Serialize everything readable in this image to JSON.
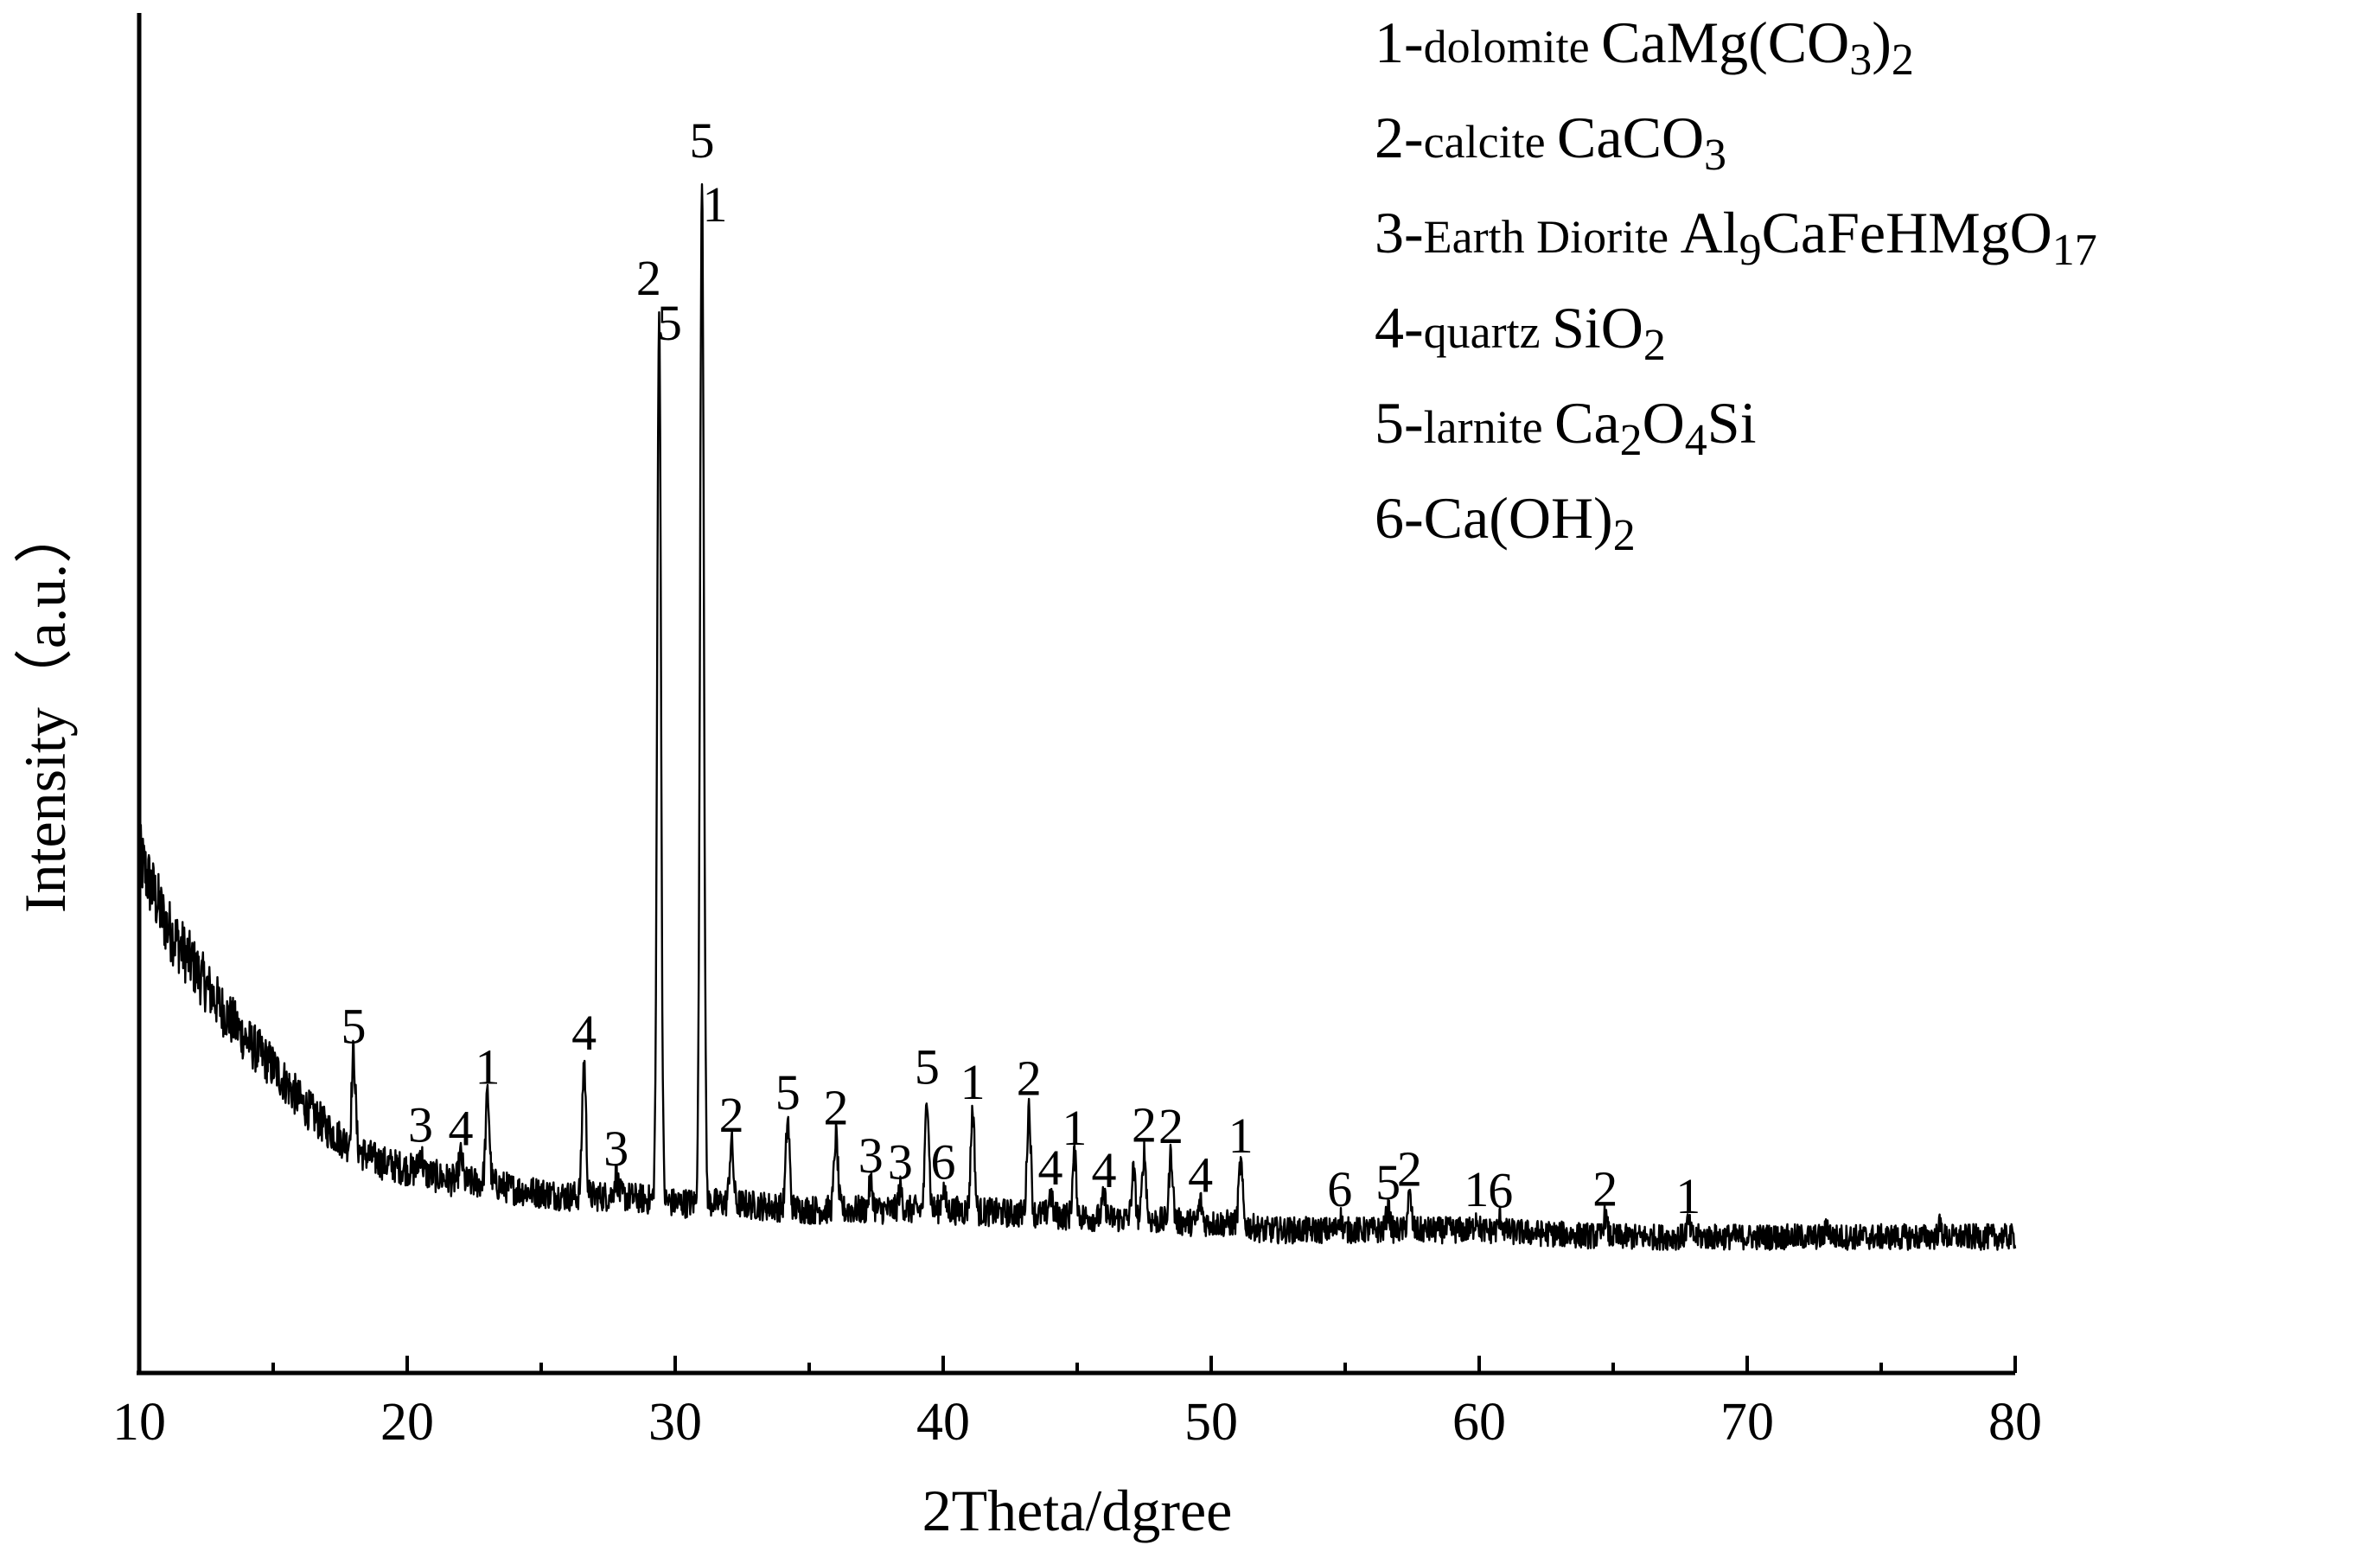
{
  "chart_data": {
    "type": "line",
    "title": "",
    "xlabel": "2Theta/dgree",
    "ylabel": "Intensity（a.u.）",
    "xlim": [
      10,
      80
    ],
    "ylim": [
      0,
      100
    ],
    "x_ticks": [
      10,
      20,
      30,
      40,
      50,
      60,
      70,
      80
    ],
    "x_tick_labels": [
      "10",
      "20",
      "30",
      "40",
      "50",
      "60",
      "70",
      "80"
    ],
    "y_ticks_shown": false,
    "grid": false,
    "legend_position": "top-right",
    "line_color": "#000000",
    "background": [
      [
        10,
        38
      ],
      [
        11,
        33
      ],
      [
        12,
        30
      ],
      [
        13,
        27
      ],
      [
        14,
        24.5
      ],
      [
        15,
        22.5
      ],
      [
        16,
        20
      ],
      [
        17,
        18
      ],
      [
        18,
        16.5
      ],
      [
        19,
        15.5
      ],
      [
        20,
        15
      ],
      [
        21,
        14.5
      ],
      [
        22,
        14
      ],
      [
        23,
        14
      ],
      [
        24,
        13.5
      ],
      [
        26,
        13
      ],
      [
        28,
        13
      ],
      [
        30,
        12.5
      ],
      [
        32,
        12.5
      ],
      [
        35,
        12
      ],
      [
        40,
        12
      ],
      [
        45,
        11.5
      ],
      [
        50,
        11
      ],
      [
        51,
        11
      ],
      [
        52,
        10.5
      ],
      [
        55,
        10.5
      ],
      [
        60,
        10.5
      ],
      [
        65,
        10
      ],
      [
        70,
        10
      ],
      [
        75,
        10
      ],
      [
        80,
        10
      ]
    ],
    "peaks": [
      {
        "x": 18.0,
        "height": 7,
        "labels": [
          "5"
        ]
      },
      {
        "x": 20.5,
        "height": 1.5,
        "labels": [
          "3"
        ]
      },
      {
        "x": 22.0,
        "height": 2,
        "labels": [
          "4"
        ]
      },
      {
        "x": 23.0,
        "height": 6.5,
        "labels": [
          "1"
        ]
      },
      {
        "x": 26.6,
        "height": 10,
        "labels": [
          "4"
        ]
      },
      {
        "x": 27.8,
        "height": 1.5,
        "labels": [
          "3"
        ]
      },
      {
        "x": 29.4,
        "height": 66,
        "labels": [
          "2",
          "5"
        ]
      },
      {
        "x": 31.0,
        "height": 76,
        "labels": [
          "5",
          "1"
        ]
      },
      {
        "x": 32.1,
        "height": 4.5,
        "labels": [
          "2"
        ]
      },
      {
        "x": 34.2,
        "height": 6.5,
        "labels": [
          "5"
        ]
      },
      {
        "x": 36.0,
        "height": 5.5,
        "labels": [
          "2"
        ]
      },
      {
        "x": 37.3,
        "height": 2,
        "labels": [
          "3"
        ]
      },
      {
        "x": 38.4,
        "height": 1.5,
        "labels": [
          "3"
        ]
      },
      {
        "x": 39.4,
        "height": 8.5,
        "labels": [
          "5"
        ]
      },
      {
        "x": 40.0,
        "height": 1.5,
        "labels": [
          "6"
        ]
      },
      {
        "x": 41.1,
        "height": 7.5,
        "labels": [
          "1"
        ]
      },
      {
        "x": 43.2,
        "height": 8,
        "labels": [
          "2"
        ]
      },
      {
        "x": 44.0,
        "height": 1.5,
        "labels": [
          "4"
        ]
      },
      {
        "x": 44.9,
        "height": 4.5,
        "labels": [
          "1"
        ]
      },
      {
        "x": 46.0,
        "height": 1.5,
        "labels": [
          "4"
        ]
      },
      {
        "x": 47.1,
        "height": 3.5,
        "labels": []
      },
      {
        "x": 47.5,
        "height": 5,
        "labels": [
          "2"
        ]
      },
      {
        "x": 48.5,
        "height": 5,
        "labels": [
          "2"
        ]
      },
      {
        "x": 49.6,
        "height": 1.5,
        "labels": [
          "4"
        ]
      },
      {
        "x": 51.1,
        "height": 4.5,
        "labels": [
          "1"
        ]
      },
      {
        "x": 54.8,
        "height": 1,
        "labels": [
          "6"
        ]
      },
      {
        "x": 56.6,
        "height": 1.5,
        "labels": [
          "5"
        ]
      },
      {
        "x": 57.4,
        "height": 2.5,
        "labels": [
          "2"
        ]
      },
      {
        "x": 59.9,
        "height": 1,
        "labels": [
          "1"
        ]
      },
      {
        "x": 60.8,
        "height": 1,
        "labels": [
          "6"
        ]
      },
      {
        "x": 64.7,
        "height": 1.5,
        "labels": [
          "2"
        ]
      },
      {
        "x": 67.8,
        "height": 1,
        "labels": [
          "1"
        ]
      },
      {
        "x": 73.0,
        "height": 0.8,
        "labels": []
      },
      {
        "x": 77.2,
        "height": 0.8,
        "labels": []
      }
    ],
    "legend": [
      {
        "num": "1-",
        "name": "dolomite",
        "formula": [
          {
            "t": "CaMg(CO"
          },
          {
            "t": "3",
            "sub": true
          },
          {
            "t": ")"
          },
          {
            "t": "2",
            "sub": true
          }
        ]
      },
      {
        "num": "2-",
        "name": "calcite",
        "formula": [
          {
            "t": "CaCO"
          },
          {
            "t": "3",
            "sub": true
          }
        ]
      },
      {
        "num": "3-",
        "name": "Earth Diorite",
        "formula": [
          {
            "t": "Al"
          },
          {
            "t": "9",
            "sub": true
          },
          {
            "t": "CaFeHMgO"
          },
          {
            "t": "17",
            "sub": true
          }
        ]
      },
      {
        "num": "4-",
        "name": "quartz",
        "formula": [
          {
            "t": "SiO"
          },
          {
            "t": "2",
            "sub": true
          }
        ]
      },
      {
        "num": "5-",
        "name": "larnite",
        "formula": [
          {
            "t": "Ca"
          },
          {
            "t": "2",
            "sub": true
          },
          {
            "t": "O"
          },
          {
            "t": "4",
            "sub": true
          },
          {
            "t": "Si"
          }
        ]
      },
      {
        "num": "6-",
        "name": "",
        "formula": [
          {
            "t": "Ca(OH)"
          },
          {
            "t": "2",
            "sub": true
          }
        ]
      }
    ]
  }
}
